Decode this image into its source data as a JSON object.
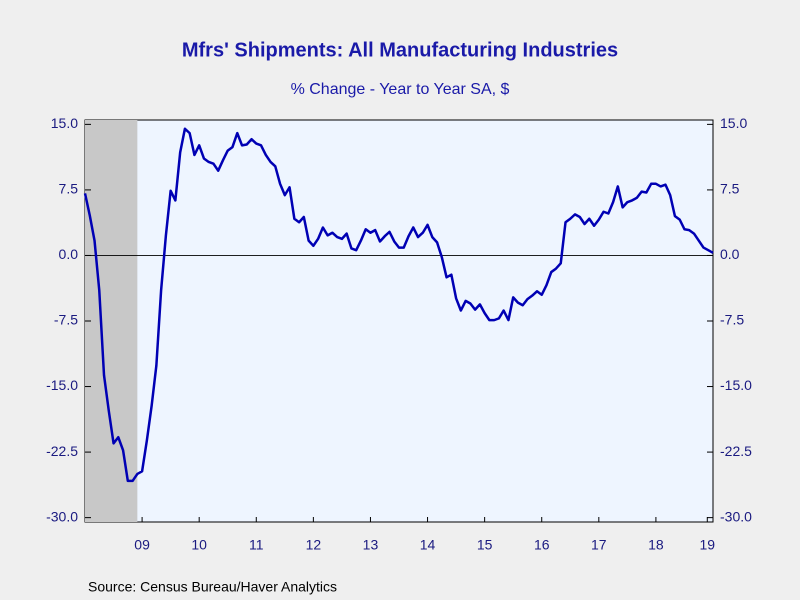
{
  "chart_data": {
    "type": "line",
    "title": "Mfrs' Shipments: All Manufacturing Industries",
    "subtitle": "% Change - Year to Year    SA, $",
    "source": "Source:  Census Bureau/Haver Analytics",
    "x": [
      2008.5,
      2008.583,
      2008.667,
      2008.75,
      2008.833,
      2008.917,
      2009,
      2009.083,
      2009.167,
      2009.25,
      2009.333,
      2009.417,
      2009.5,
      2009.583,
      2009.667,
      2009.75,
      2009.833,
      2009.917,
      2010,
      2010.083,
      2010.167,
      2010.25,
      2010.333,
      2010.417,
      2010.5,
      2010.583,
      2010.667,
      2010.75,
      2010.833,
      2010.917,
      2011,
      2011.083,
      2011.167,
      2011.25,
      2011.333,
      2011.417,
      2011.5,
      2011.583,
      2011.667,
      2011.75,
      2011.833,
      2011.917,
      2012,
      2012.083,
      2012.167,
      2012.25,
      2012.333,
      2012.417,
      2012.5,
      2012.583,
      2012.667,
      2012.75,
      2012.833,
      2012.917,
      2013,
      2013.083,
      2013.167,
      2013.25,
      2013.333,
      2013.417,
      2013.5,
      2013.583,
      2013.667,
      2013.75,
      2013.833,
      2013.917,
      2014,
      2014.083,
      2014.167,
      2014.25,
      2014.333,
      2014.417,
      2014.5,
      2014.583,
      2014.667,
      2014.75,
      2014.833,
      2014.917,
      2015,
      2015.083,
      2015.167,
      2015.25,
      2015.333,
      2015.417,
      2015.5,
      2015.583,
      2015.667,
      2015.75,
      2015.833,
      2015.917,
      2016,
      2016.083,
      2016.167,
      2016.25,
      2016.333,
      2016.417,
      2016.5,
      2016.583,
      2016.667,
      2016.75,
      2016.833,
      2016.917,
      2017,
      2017.083,
      2017.167,
      2017.25,
      2017.333,
      2017.417,
      2017.5,
      2017.583,
      2017.667,
      2017.75,
      2017.833,
      2017.917,
      2018,
      2018.083,
      2018.167,
      2018.25,
      2018.333,
      2018.417,
      2018.5,
      2018.583,
      2018.667,
      2018.75,
      2018.833,
      2018.917,
      2019,
      2019.083,
      2019.167,
      2019.25,
      2019.333,
      2019.417,
      2019.5
    ],
    "series": [
      {
        "name": "Mfrs' Shipments",
        "color": "#0000b4",
        "values": [
          7.1,
          4.6,
          1.7,
          -4,
          -13.7,
          -17.8,
          -21.5,
          -20.8,
          -22.3,
          -25.8,
          -25.8,
          -25,
          -24.7,
          -21.2,
          -17.2,
          -12.6,
          -4,
          2.3,
          7.4,
          6.3,
          11.8,
          14.5,
          14,
          11.5,
          12.6,
          11.1,
          10.7,
          10.5,
          9.7,
          10.9,
          12,
          12.4,
          14,
          12.6,
          12.7,
          13.3,
          12.8,
          12.6,
          11.5,
          10.7,
          10.2,
          8.2,
          6.9,
          7.8,
          4.2,
          3.8,
          4.4,
          1.7,
          1.1,
          1.9,
          3.2,
          2.3,
          2.6,
          2.1,
          1.9,
          2.5,
          0.8,
          0.6,
          1.7,
          3,
          2.6,
          2.9,
          1.6,
          2.2,
          2.7,
          1.6,
          0.9,
          0.9,
          2.2,
          3.2,
          2.1,
          2.6,
          3.5,
          2.1,
          1.5,
          -0.2,
          -2.5,
          -2.2,
          -4.9,
          -6.3,
          -5.2,
          -5.5,
          -6.2,
          -5.6,
          -6.6,
          -7.4,
          -7.4,
          -7.2,
          -6.3,
          -7.4,
          -4.8,
          -5.4,
          -5.7,
          -5,
          -4.6,
          -4.1,
          -4.5,
          -3.4,
          -1.9,
          -1.5,
          -0.9,
          3.8,
          4.2,
          4.7,
          4.4,
          3.6,
          4.2,
          3.4,
          4.1,
          5,
          4.8,
          6.1,
          7.9,
          5.5,
          6.1,
          6.3,
          6.6,
          7.3,
          7.2,
          8.2,
          8.2,
          7.9,
          8.1,
          6.9,
          4.5,
          4.1,
          3,
          2.9,
          2.5,
          1.7,
          0.9,
          0.6,
          0.3
        ]
      }
    ],
    "shade_x": [
      2008.5,
      2009.417
    ],
    "xlim": [
      2008.5,
      2019.5
    ],
    "xticks": [
      {
        "value": 2009.5,
        "label": "09"
      },
      {
        "value": 2010.5,
        "label": "10"
      },
      {
        "value": 2011.5,
        "label": "11"
      },
      {
        "value": 2012.5,
        "label": "12"
      },
      {
        "value": 2013.5,
        "label": "13"
      },
      {
        "value": 2014.5,
        "label": "14"
      },
      {
        "value": 2015.5,
        "label": "15"
      },
      {
        "value": 2016.5,
        "label": "16"
      },
      {
        "value": 2017.5,
        "label": "17"
      },
      {
        "value": 2018.5,
        "label": "18"
      },
      {
        "value": 2019.4,
        "label": "19"
      }
    ],
    "ylim": [
      -30.5,
      15.5
    ],
    "yticks": [
      {
        "value": 15,
        "label": "15.0"
      },
      7.5,
      {
        "value": 0,
        "label": "0.0"
      },
      -7.5,
      {
        "value": -15,
        "label": "-15.0"
      },
      -22.5,
      {
        "value": -30,
        "label": "-30.0"
      }
    ],
    "y2lim": [
      -30.5,
      15.5
    ],
    "y2ticks": [
      {
        "value": 15,
        "label": "15.0"
      },
      7.5,
      {
        "value": 0,
        "label": "0.0"
      },
      -7.5,
      {
        "value": -15,
        "label": "-15.0"
      },
      -22.5,
      {
        "value": -30,
        "label": "-30.0"
      }
    ]
  }
}
